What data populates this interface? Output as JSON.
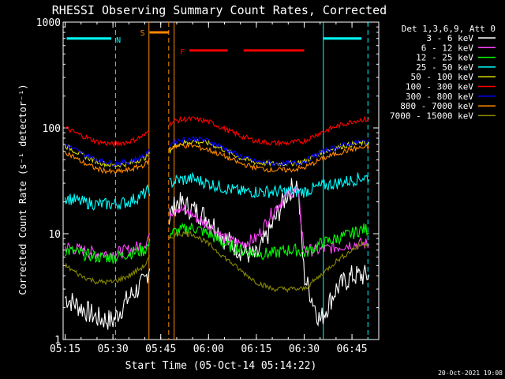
{
  "chart_data": {
    "type": "line",
    "title": "RHESSI Observing Summary Count Rates, Corrected",
    "xlabel": "Start Time (05-Oct-14 05:14:22)",
    "ylabel": "Corrected Count Rate (s⁻¹ detector⁻¹)",
    "x_ticks": [
      "05:15",
      "05:30",
      "05:45",
      "06:00",
      "06:15",
      "06:30",
      "06:45"
    ],
    "x_tick_minutes": [
      15,
      30,
      45,
      60,
      75,
      90,
      105
    ],
    "xlim_minutes": [
      14.37,
      113.4
    ],
    "y_scale": "log",
    "ylim": [
      1,
      1000
    ],
    "y_ticks": [
      "1",
      "10",
      "100",
      "1000"
    ],
    "y_tick_values": [
      1,
      10,
      100,
      1000
    ],
    "legend_title": "Det 1,3,6,9, Att 0",
    "legend_position": "right",
    "footer_date": "20-Oct-2021 19:08",
    "series": [
      {
        "name": "3 - 6 keV",
        "color": "#ffffff",
        "x": [
          15,
          20,
          25,
          30,
          35,
          40,
          41.5,
          48,
          50,
          55,
          60,
          65,
          70,
          75,
          80,
          85,
          88,
          90,
          95,
          100,
          105,
          108
        ],
        "y": [
          2.5,
          2,
          1.6,
          1.5,
          2.5,
          3.5,
          5,
          15,
          20,
          17,
          14,
          9,
          7,
          6,
          12,
          25,
          30,
          4,
          1.5,
          3,
          4,
          4
        ]
      },
      {
        "name": "6 - 12 keV",
        "color": "#ff44ff",
        "x": [
          15,
          20,
          25,
          30,
          35,
          40,
          41.5,
          48,
          50,
          55,
          60,
          65,
          70,
          75,
          80,
          85,
          88,
          90,
          95,
          100,
          105,
          108
        ],
        "y": [
          7.5,
          7,
          6.5,
          6.5,
          7,
          8,
          10,
          16,
          18,
          15,
          12,
          9,
          8,
          9,
          16,
          24,
          26,
          7,
          7,
          7.5,
          8,
          8
        ]
      },
      {
        "name": "12 - 25 keV",
        "color": "#00ff00",
        "x": [
          15,
          20,
          25,
          30,
          35,
          40,
          41.5,
          48,
          50,
          55,
          60,
          65,
          70,
          75,
          80,
          85,
          88,
          90,
          95,
          100,
          105,
          108
        ],
        "y": [
          7,
          6.5,
          6,
          6,
          6.5,
          7,
          8,
          10,
          10.5,
          11.5,
          10,
          8,
          7,
          6.5,
          6.5,
          7,
          7,
          6.5,
          8,
          9,
          10,
          11
        ]
      },
      {
        "name": "25 - 50 keV",
        "color": "#00ffff",
        "x": [
          15,
          20,
          25,
          30,
          35,
          40,
          41.5,
          48,
          50,
          55,
          60,
          65,
          70,
          75,
          80,
          85,
          88,
          90,
          95,
          100,
          105,
          108
        ],
        "y": [
          22,
          20,
          19,
          19,
          20,
          24,
          26,
          30,
          32,
          33,
          30,
          27,
          25,
          25,
          25,
          25,
          25,
          25,
          28,
          30,
          32,
          34
        ]
      },
      {
        "name": "50 - 100 keV",
        "color": "#dddd00",
        "x": [
          15,
          20,
          25,
          30,
          35,
          40,
          41.5,
          48,
          50,
          55,
          60,
          65,
          70,
          75,
          80,
          85,
          88,
          90,
          95,
          100,
          105,
          108
        ],
        "y": [
          68,
          56,
          48,
          44,
          46,
          52,
          58,
          62,
          70,
          75,
          72,
          62,
          52,
          47,
          46,
          46,
          47,
          48,
          58,
          65,
          70,
          72
        ]
      },
      {
        "name": "100 - 300 keV",
        "color": "#ff0000",
        "x": [
          15,
          20,
          25,
          30,
          35,
          40,
          41.5,
          48,
          50,
          55,
          60,
          65,
          70,
          75,
          80,
          85,
          88,
          90,
          95,
          100,
          105,
          108
        ],
        "y": [
          100,
          85,
          74,
          70,
          74,
          85,
          98,
          110,
          118,
          122,
          115,
          98,
          84,
          75,
          72,
          72,
          74,
          75,
          90,
          103,
          115,
          120
        ]
      },
      {
        "name": "300 - 800 keV",
        "color": "#0000ff",
        "x": [
          15,
          20,
          25,
          30,
          35,
          40,
          41.5,
          48,
          50,
          55,
          60,
          65,
          70,
          75,
          80,
          85,
          88,
          90,
          95,
          100,
          105,
          108
        ],
        "y": [
          70,
          58,
          50,
          46,
          48,
          55,
          60,
          70,
          76,
          80,
          76,
          64,
          54,
          48,
          46,
          46,
          47,
          48,
          58,
          66,
          72,
          74
        ]
      },
      {
        "name": "800 - 7000 keV",
        "color": "#ff8800",
        "x": [
          15,
          20,
          25,
          30,
          35,
          40,
          41.5,
          48,
          50,
          55,
          60,
          65,
          70,
          75,
          80,
          85,
          88,
          90,
          95,
          100,
          105,
          108
        ],
        "y": [
          60,
          48,
          41,
          38,
          40,
          45,
          50,
          64,
          68,
          68,
          62,
          54,
          46,
          42,
          40,
          40,
          41,
          42,
          50,
          57,
          63,
          65
        ]
      },
      {
        "name": "7000 - 15000 keV",
        "color": "#888800",
        "x": [
          15,
          20,
          25,
          30,
          35,
          40,
          41.5,
          48,
          50,
          55,
          60,
          65,
          70,
          75,
          80,
          85,
          88,
          90,
          95,
          100,
          105,
          108
        ],
        "y": [
          5,
          4,
          3.5,
          3.5,
          4,
          5,
          6,
          9,
          10,
          10,
          8,
          6,
          4.5,
          3.5,
          3,
          3,
          3,
          3,
          4,
          5.5,
          7,
          8
        ]
      }
    ],
    "intervals": [
      {
        "label": "N",
        "color": "#00ffff",
        "y": 700,
        "x": [
          [
            15.5,
            29.5
          ],
          [
            96,
            108
          ]
        ]
      },
      {
        "label": "S",
        "color": "#ff8800",
        "y": 800,
        "x": [
          [
            41.5,
            47.5
          ]
        ]
      },
      {
        "label": "F",
        "color": "#ff0000",
        "y": 540,
        "x": [
          [
            54,
            66
          ],
          [
            71,
            90
          ]
        ]
      }
    ],
    "boundaries": [
      {
        "x": 30.8,
        "color": "#00ffff",
        "style": "dashed"
      },
      {
        "x": 41.3,
        "color": "#ff8800",
        "style": "solid"
      },
      {
        "x": 47.5,
        "color": "#ff8800",
        "style": "dashed"
      },
      {
        "x": 49.2,
        "color": "#ff8800",
        "style": "solid"
      },
      {
        "x": 96.0,
        "color": "#00ffff",
        "style": "solid"
      },
      {
        "x": 110.0,
        "color": "#00ffff",
        "style": "dashed"
      }
    ]
  }
}
